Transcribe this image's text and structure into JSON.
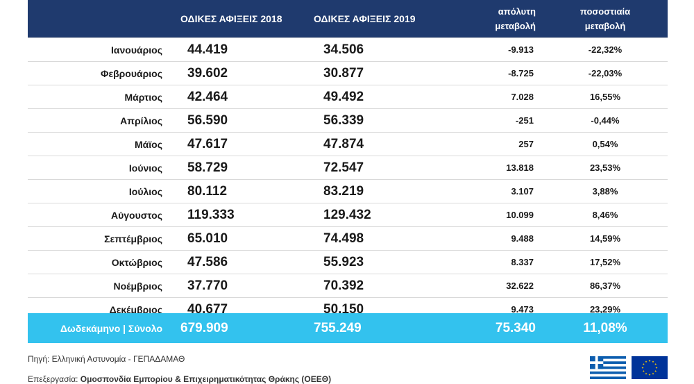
{
  "header": {
    "col_month": "",
    "col_2018": "ΟΔΙΚΕΣ ΑΦΙΞΕΙΣ 2018",
    "col_2019": "ΟΔΙΚΕΣ ΑΦΙΞΕΙΣ  2019",
    "col_abs_line1": "απόλυτη",
    "col_abs_line2": "μεταβολή",
    "col_pct_line1": "ποσοστιαία",
    "col_pct_line2": "μεταβολή"
  },
  "rows": [
    {
      "month": "Ιανουάριος",
      "v2018": "44.419",
      "v2019": "34.506",
      "abs": "-9.913",
      "pct": "-22,32%"
    },
    {
      "month": "Φεβρουάριος",
      "v2018": "39.602",
      "v2019": "30.877",
      "abs": "-8.725",
      "pct": "-22,03%"
    },
    {
      "month": "Μάρτιος",
      "v2018": "42.464",
      "v2019": "49.492",
      "abs": "7.028",
      "pct": "16,55%"
    },
    {
      "month": "Απρίλιος",
      "v2018": "56.590",
      "v2019": "56.339",
      "abs": "-251",
      "pct": "-0,44%"
    },
    {
      "month": "Μάϊος",
      "v2018": "47.617",
      "v2019": "47.874",
      "abs": "257",
      "pct": "0,54%"
    },
    {
      "month": "Ιούνιος",
      "v2018": "58.729",
      "v2019": "72.547",
      "abs": "13.818",
      "pct": "23,53%"
    },
    {
      "month": "Ιούλιος",
      "v2018": "80.112",
      "v2019": "83.219",
      "abs": "3.107",
      "pct": "3,88%"
    },
    {
      "month": "Αύγουστος",
      "v2018": "119.333",
      "v2019": "129.432",
      "abs": "10.099",
      "pct": "8,46%"
    },
    {
      "month": "Σεπτέμβριος",
      "v2018": "65.010",
      "v2019": "74.498",
      "abs": "9.488",
      "pct": "14,59%"
    },
    {
      "month": "Οκτώβριος",
      "v2018": "47.586",
      "v2019": "55.923",
      "abs": "8.337",
      "pct": "17,52%"
    },
    {
      "month": "Νοέμβριος",
      "v2018": "37.770",
      "v2019": "70.392",
      "abs": "32.622",
      "pct": "86,37%"
    },
    {
      "month": "Δεκέμβριος",
      "v2018": "40.677",
      "v2019": "50.150",
      "abs": "9.473",
      "pct": "23,29%"
    }
  ],
  "total": {
    "label": "Δωδεκάμηνο | Σύνολο",
    "v2018": "679.909",
    "v2019": "755.249",
    "abs": "75.340",
    "pct": "11,08%"
  },
  "footer": {
    "source": "Πηγή: Ελληνική Αστυνομία - ΓΕΠΑΔΑΜΑΘ",
    "credit_prefix": "Επεξεργασία: ",
    "credit_org": "Ομοσπονδία Εμπορίου & Επιχειρηματικότητας Θράκης (ΟΕΕΘ)"
  },
  "logos": {
    "greek_flag": "greece-flag-icon",
    "eu_flag": "eu-flag-icon",
    "navy": "#1f3a6e",
    "cyan": "#33c2ee",
    "gr_blue": "#0d5eaf",
    "eu_blue": "#003399",
    "eu_gold": "#ffcc00"
  }
}
